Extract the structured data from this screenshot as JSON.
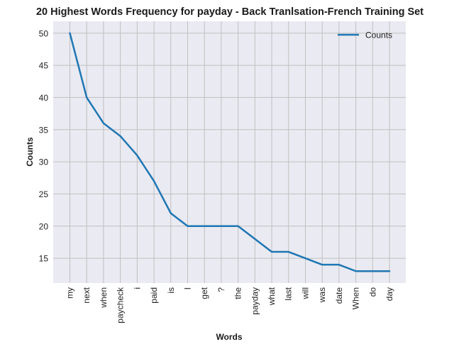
{
  "chart_data": {
    "type": "line",
    "title": "20 Highest Words Frequency for payday - Back Tranlsation-French Training Set",
    "xlabel": "Words",
    "ylabel": "Counts",
    "categories": [
      "my",
      "next",
      "when",
      "paycheck",
      "i",
      "paid",
      "is",
      "I",
      "get",
      "?",
      "the",
      "payday",
      "what",
      "last",
      "will",
      "was",
      "date",
      "When",
      "do",
      "day"
    ],
    "series": [
      {
        "name": "Counts",
        "values": [
          50,
          40,
          36,
          34,
          31,
          27,
          22,
          20,
          20,
          20,
          20,
          18,
          16,
          16,
          15,
          14,
          14,
          13,
          13,
          13
        ]
      }
    ],
    "ylim": [
      11.15,
      51.85
    ],
    "yticks": [
      15,
      20,
      25,
      30,
      35,
      40,
      45,
      50
    ],
    "grid": true,
    "legend_position": "top-right",
    "colors": {
      "line": "#1f77b4",
      "plot_bg": "#eaeaf2",
      "grid": "#c0c0c0"
    }
  }
}
